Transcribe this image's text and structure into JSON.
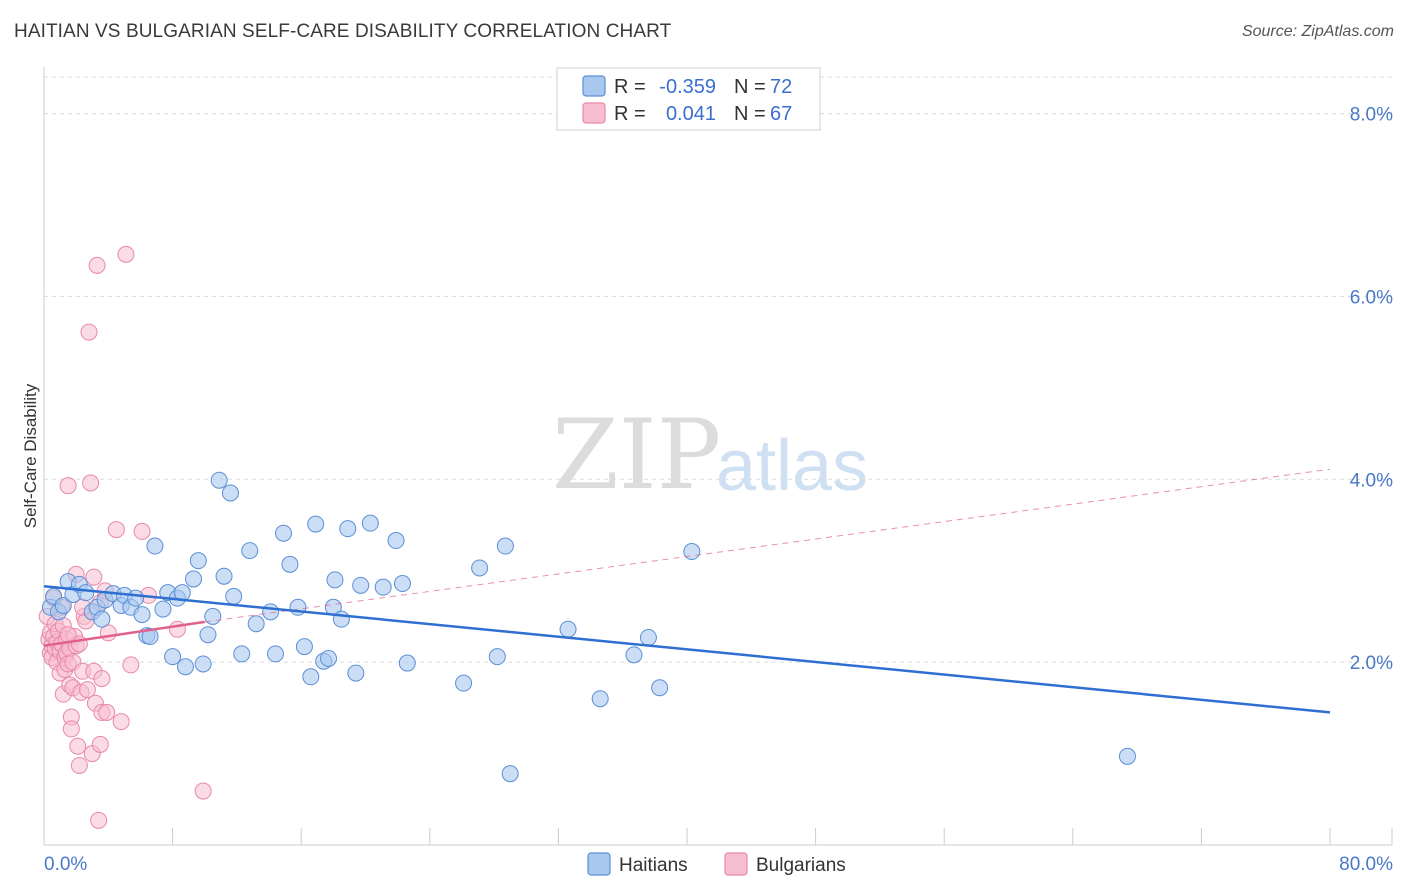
{
  "title": "HAITIAN VS BULGARIAN SELF-CARE DISABILITY CORRELATION CHART",
  "source": "Source: ZipAtlas.com",
  "watermark": {
    "zip": "ZIP",
    "atlas": "atlas"
  },
  "colors": {
    "haitians_fill": "#a9c8ef",
    "haitians_stroke": "#5b8fd6",
    "haitians_line": "#2e6fd1",
    "bulgarians_fill": "#f7bdd0",
    "bulgarians_stroke": "#e889a8",
    "bulgarians_line": "#e0608e",
    "grid": "#dcdcdc",
    "tick_text": "#4a78c8"
  },
  "legend": {
    "r_label": "R =",
    "n_label": "N =",
    "rows": [
      {
        "series": "Haitians",
        "r": "-0.359",
        "n": "72"
      },
      {
        "series": "Bulgarians",
        "r": "0.041",
        "n": "67"
      }
    ]
  },
  "bottom_legend": [
    "Haitians",
    "Bulgarians"
  ],
  "chart_data": {
    "type": "scatter",
    "title": "HAITIAN VS BULGARIAN SELF-CARE DISABILITY CORRELATION CHART",
    "xlabel": "",
    "ylabel": "Self-Care Disability",
    "xlim": [
      0,
      80
    ],
    "ylim": [
      0,
      8.4
    ],
    "x_tick_labels": [
      {
        "value": 0,
        "label": "0.0%"
      },
      {
        "value": 80,
        "label": "80.0%"
      }
    ],
    "y_tick_labels": [
      {
        "value": 2,
        "label": "2.0%"
      },
      {
        "value": 4,
        "label": "4.0%"
      },
      {
        "value": 6,
        "label": "6.0%"
      },
      {
        "value": 8,
        "label": "8.0%"
      }
    ],
    "series": [
      {
        "name": "Haitians",
        "r": -0.359,
        "n": 72,
        "trend": {
          "x": [
            0,
            80
          ],
          "y": [
            2.83,
            1.45
          ],
          "style": "solid"
        },
        "points": [
          [
            0.4,
            2.6
          ],
          [
            0.6,
            2.72
          ],
          [
            0.9,
            2.55
          ],
          [
            1.2,
            2.62
          ],
          [
            1.5,
            2.88
          ],
          [
            1.8,
            2.74
          ],
          [
            2.2,
            2.85
          ],
          [
            2.6,
            2.76
          ],
          [
            3.0,
            2.55
          ],
          [
            3.3,
            2.6
          ],
          [
            3.6,
            2.47
          ],
          [
            3.8,
            2.68
          ],
          [
            4.3,
            2.75
          ],
          [
            4.8,
            2.62
          ],
          [
            5.0,
            2.73
          ],
          [
            5.4,
            2.6
          ],
          [
            5.7,
            2.7
          ],
          [
            6.1,
            2.52
          ],
          [
            6.4,
            2.29
          ],
          [
            6.6,
            2.28
          ],
          [
            6.9,
            3.27
          ],
          [
            7.4,
            2.58
          ],
          [
            7.7,
            2.76
          ],
          [
            8.0,
            2.06
          ],
          [
            8.3,
            2.7
          ],
          [
            8.6,
            2.76
          ],
          [
            8.8,
            1.95
          ],
          [
            9.3,
            2.91
          ],
          [
            9.6,
            3.11
          ],
          [
            9.9,
            1.98
          ],
          [
            10.2,
            2.3
          ],
          [
            10.5,
            2.5
          ],
          [
            10.9,
            3.99
          ],
          [
            11.2,
            2.94
          ],
          [
            11.6,
            3.85
          ],
          [
            11.8,
            2.72
          ],
          [
            12.3,
            2.09
          ],
          [
            12.8,
            3.22
          ],
          [
            13.2,
            2.42
          ],
          [
            14.1,
            2.55
          ],
          [
            14.4,
            2.09
          ],
          [
            14.9,
            3.41
          ],
          [
            15.3,
            3.07
          ],
          [
            15.8,
            2.6
          ],
          [
            16.2,
            2.17
          ],
          [
            16.6,
            1.84
          ],
          [
            16.9,
            3.51
          ],
          [
            17.4,
            2.01
          ],
          [
            17.7,
            2.04
          ],
          [
            18.0,
            2.6
          ],
          [
            18.1,
            2.9
          ],
          [
            18.5,
            2.47
          ],
          [
            18.9,
            3.46
          ],
          [
            19.4,
            1.88
          ],
          [
            19.7,
            2.84
          ],
          [
            20.3,
            3.52
          ],
          [
            21.1,
            2.82
          ],
          [
            21.9,
            3.33
          ],
          [
            22.3,
            2.86
          ],
          [
            22.6,
            1.99
          ],
          [
            26.1,
            1.77
          ],
          [
            27.1,
            3.03
          ],
          [
            28.2,
            2.06
          ],
          [
            28.7,
            3.27
          ],
          [
            29.0,
            0.78
          ],
          [
            32.6,
            2.36
          ],
          [
            34.6,
            1.6
          ],
          [
            36.7,
            2.08
          ],
          [
            37.6,
            2.27
          ],
          [
            38.3,
            1.72
          ],
          [
            40.3,
            3.21
          ],
          [
            67.4,
            0.97
          ]
        ]
      },
      {
        "name": "Bulgarians",
        "r": 0.041,
        "n": 67,
        "trend": {
          "x": [
            0,
            10
          ],
          "y": [
            2.18,
            2.44
          ],
          "style": "solid"
        },
        "trend_extension": {
          "x": [
            10,
            80
          ],
          "y": [
            2.44,
            4.11
          ],
          "style": "dashed"
        },
        "points": [
          [
            0.2,
            2.5
          ],
          [
            0.3,
            2.25
          ],
          [
            0.4,
            2.1
          ],
          [
            0.4,
            2.32
          ],
          [
            0.5,
            2.18
          ],
          [
            0.5,
            2.05
          ],
          [
            0.6,
            2.7
          ],
          [
            0.6,
            2.28
          ],
          [
            0.7,
            2.15
          ],
          [
            0.7,
            2.42
          ],
          [
            0.8,
            2.22
          ],
          [
            0.8,
            2.0
          ],
          [
            0.9,
            2.34
          ],
          [
            1.0,
            2.12
          ],
          [
            1.0,
            1.88
          ],
          [
            1.1,
            2.6
          ],
          [
            1.1,
            2.2
          ],
          [
            1.2,
            2.4
          ],
          [
            1.2,
            1.65
          ],
          [
            1.3,
            2.05
          ],
          [
            1.3,
            1.92
          ],
          [
            1.4,
            2.25
          ],
          [
            1.4,
            2.1
          ],
          [
            1.5,
            1.98
          ],
          [
            1.5,
            3.93
          ],
          [
            1.6,
            2.15
          ],
          [
            1.6,
            1.75
          ],
          [
            1.7,
            1.4
          ],
          [
            1.7,
            1.27
          ],
          [
            1.8,
            2.0
          ],
          [
            1.8,
            1.72
          ],
          [
            1.9,
            2.28
          ],
          [
            2.0,
            2.18
          ],
          [
            2.0,
            2.96
          ],
          [
            2.1,
            1.08
          ],
          [
            2.2,
            0.87
          ],
          [
            2.2,
            2.2
          ],
          [
            2.3,
            1.67
          ],
          [
            2.4,
            1.9
          ],
          [
            2.5,
            2.5
          ],
          [
            2.6,
            2.45
          ],
          [
            2.7,
            1.7
          ],
          [
            2.8,
            5.61
          ],
          [
            2.9,
            3.96
          ],
          [
            3.0,
            1.0
          ],
          [
            3.1,
            1.9
          ],
          [
            3.1,
            2.93
          ],
          [
            3.2,
            1.55
          ],
          [
            3.3,
            6.34
          ],
          [
            3.4,
            0.27
          ],
          [
            3.5,
            1.1
          ],
          [
            3.5,
            2.65
          ],
          [
            3.6,
            1.82
          ],
          [
            3.6,
            1.45
          ],
          [
            3.8,
            2.78
          ],
          [
            3.9,
            1.45
          ],
          [
            4.0,
            2.32
          ],
          [
            4.5,
            3.45
          ],
          [
            4.8,
            1.35
          ],
          [
            5.1,
            6.46
          ],
          [
            5.4,
            1.97
          ],
          [
            6.1,
            3.43
          ],
          [
            6.5,
            2.73
          ],
          [
            8.3,
            2.36
          ],
          [
            9.9,
            0.59
          ],
          [
            1.5,
            2.3
          ],
          [
            2.4,
            2.6
          ]
        ]
      }
    ]
  }
}
